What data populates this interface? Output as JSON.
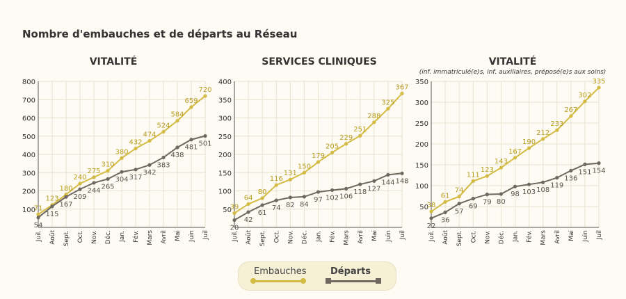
{
  "main_title": "Nombre d'embauches et de départs au Réseau",
  "colors": {
    "embauches": "#d4bb44",
    "departs": "#6e6860",
    "grid": "#e8e2cf",
    "axis": "#333333"
  },
  "legend": {
    "embauches": "Embauches",
    "departs": "Départs"
  },
  "chart_data": [
    {
      "type": "line",
      "title": "VITALITÉ",
      "subtitle": "",
      "categories": [
        "Juil.",
        "Août",
        "Sept.",
        "Oct.",
        "Nov.",
        "Déc.",
        "Jan.",
        "Fév.",
        "Mars",
        "Avril",
        "Mai",
        "Juin",
        "Juil"
      ],
      "ylim": [
        0,
        800
      ],
      "yticks": [
        100,
        200,
        300,
        400,
        500,
        600,
        700,
        800
      ],
      "series": [
        {
          "name": "Embauches",
          "values": [
            71,
            123,
            180,
            240,
            275,
            310,
            380,
            432,
            474,
            524,
            584,
            659,
            720
          ]
        },
        {
          "name": "Départs",
          "values": [
            54,
            115,
            167,
            209,
            244,
            265,
            304,
            317,
            342,
            383,
            438,
            481,
            501
          ]
        }
      ]
    },
    {
      "type": "line",
      "title": "SERVICES CLINIQUES",
      "subtitle": "",
      "categories": [
        "Juil.",
        "Août",
        "Sept.",
        "Oct.",
        "Nov.",
        "Déc.",
        "Jan.",
        "Fév.",
        "Mars",
        "Avril",
        "Mai",
        "Juin",
        "Juil"
      ],
      "ylim": [
        0,
        400
      ],
      "yticks": [
        50,
        100,
        150,
        200,
        250,
        300,
        350,
        400
      ],
      "series": [
        {
          "name": "Embauches",
          "values": [
            39,
            64,
            80,
            116,
            131,
            150,
            179,
            205,
            229,
            251,
            288,
            325,
            367
          ]
        },
        {
          "name": "Départs",
          "values": [
            20,
            42,
            61,
            74,
            82,
            84,
            97,
            102,
            106,
            118,
            127,
            144,
            148
          ]
        }
      ]
    },
    {
      "type": "line",
      "title": "VITALITÉ",
      "subtitle": "(inf. immatriculé(e)s, inf. auxiliaires, préposé(e)s aux soins)",
      "categories": [
        "Juil.",
        "Août",
        "Sept.",
        "Oct.",
        "Nov.",
        "Déc.",
        "Jan.",
        "Fév.",
        "Mars",
        "Avril",
        "Mai",
        "Juin",
        "Juil"
      ],
      "ylim": [
        0,
        350
      ],
      "yticks": [
        50,
        100,
        150,
        200,
        250,
        300,
        350
      ],
      "series": [
        {
          "name": "Embauches",
          "values": [
            38,
            61,
            74,
            111,
            123,
            143,
            167,
            190,
            212,
            233,
            267,
            302,
            335
          ]
        },
        {
          "name": "Départs",
          "values": [
            22,
            36,
            57,
            69,
            79,
            80,
            98,
            103,
            108,
            119,
            136,
            151,
            154
          ]
        }
      ]
    }
  ]
}
